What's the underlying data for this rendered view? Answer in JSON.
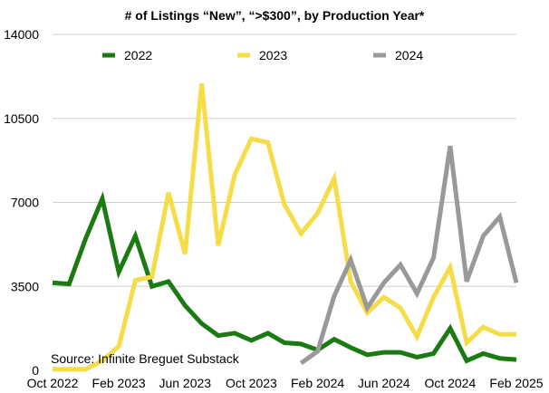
{
  "chart_data": {
    "type": "line",
    "title": "# of Listings “New”, “>$300”, by Production Year*",
    "source": "Source: Infinite Breguet Substack",
    "ylim": [
      0,
      14000
    ],
    "yticks": [
      0,
      3500,
      7000,
      10500,
      14000
    ],
    "x_month_index": {
      "start": 0,
      "end": 28
    },
    "xtick_labels": [
      "Oct 2022",
      "Feb 2023",
      "Jun 2023",
      "Oct 2023",
      "Feb 2024",
      "Jun 2024",
      "Oct 2024",
      "Feb 2025"
    ],
    "xtick_positions": [
      0,
      4,
      8,
      12,
      16,
      20,
      24,
      28
    ],
    "legend_position": "top",
    "grid": true,
    "series": [
      {
        "name": "2022",
        "color": "#1c7a12",
        "x": [
          0,
          1,
          2,
          3,
          4,
          5,
          6,
          7,
          8,
          9,
          10,
          11,
          12,
          13,
          14,
          15,
          16,
          17,
          18,
          19,
          20,
          21,
          22,
          23,
          24,
          25,
          26,
          27,
          28
        ],
        "values": [
          3650,
          3600,
          5500,
          7150,
          4100,
          5600,
          3500,
          3700,
          2700,
          1950,
          1450,
          1550,
          1250,
          1550,
          1150,
          1100,
          850,
          1300,
          950,
          650,
          750,
          750,
          550,
          700,
          1750,
          400,
          700,
          500,
          450
        ]
      },
      {
        "name": "2023",
        "color": "#f5dd4a",
        "x": [
          0,
          1,
          2,
          3,
          4,
          5,
          6,
          7,
          8,
          9,
          10,
          11,
          12,
          13,
          14,
          15,
          16,
          17,
          18,
          19,
          20,
          21,
          22,
          23,
          24,
          25,
          26,
          27,
          28
        ],
        "values": [
          50,
          50,
          50,
          400,
          1000,
          3750,
          3900,
          7400,
          4850,
          11950,
          5200,
          8150,
          9650,
          9500,
          6900,
          5700,
          6550,
          8000,
          3700,
          2400,
          3050,
          2600,
          1400,
          3050,
          4300,
          1150,
          1800,
          1500,
          1500
        ]
      },
      {
        "name": "2024",
        "color": "#999999",
        "x": [
          15,
          16,
          17,
          18,
          19,
          20,
          21,
          22,
          23,
          24,
          25,
          26,
          27,
          28
        ],
        "values": [
          300,
          800,
          3100,
          4600,
          2600,
          3650,
          4400,
          3200,
          4700,
          9350,
          3700,
          5600,
          6400,
          3650
        ]
      }
    ]
  }
}
